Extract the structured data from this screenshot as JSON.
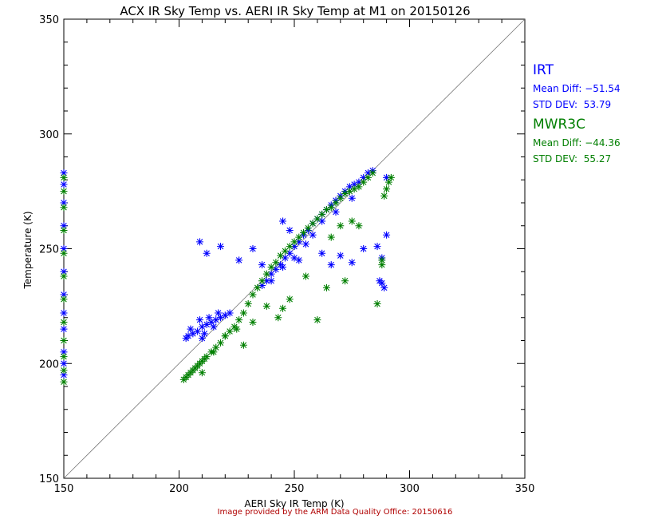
{
  "chart_data": {
    "type": "scatter",
    "title": "ACX IR Sky Temp vs. AERI IR Sky Temp at M1 on 20150126",
    "xlabel": "AERI Sky IR Temp (K)",
    "ylabel": "Temperature (K)",
    "xlim": [
      150,
      350
    ],
    "ylim": [
      150,
      350
    ],
    "xticks": [
      150,
      200,
      250,
      300,
      350
    ],
    "yticks": [
      150,
      200,
      250,
      300,
      350
    ],
    "one_to_one_line": true,
    "grid": false,
    "marker": "asterisk",
    "series": [
      {
        "name": "IRT",
        "color": "#0000ff",
        "mean_diff_label": "Mean Diff:",
        "mean_diff": "−51.54",
        "std_dev_label": "STD DEV:",
        "std_dev": "53.79",
        "x": [
          203,
          204,
          206,
          208,
          210,
          212,
          214,
          216,
          218,
          220,
          222,
          205,
          209,
          213,
          217,
          211,
          215,
          210,
          236,
          238,
          240,
          242,
          244,
          246,
          248,
          250,
          252,
          254,
          256,
          258,
          260,
          262,
          264,
          266,
          268,
          270,
          272,
          274,
          276,
          278,
          280,
          282,
          284,
          240,
          245,
          250,
          255,
          258,
          262,
          268,
          275,
          209,
          212,
          218,
          226,
          232,
          236,
          245,
          248,
          252,
          262,
          266,
          270,
          275,
          280,
          286,
          288,
          290,
          287,
          288,
          289,
          290,
          150,
          150,
          150,
          150,
          150,
          150,
          150,
          150,
          150,
          150,
          150,
          150
        ],
        "y": [
          211,
          212,
          213,
          214,
          216,
          217,
          218,
          219,
          220,
          221,
          222,
          215,
          219,
          220,
          222,
          213,
          216,
          211,
          234,
          236,
          239,
          241,
          243,
          246,
          248,
          251,
          253,
          256,
          258,
          261,
          263,
          265,
          267,
          269,
          271,
          273,
          275,
          277,
          278,
          279,
          281,
          283,
          284,
          236,
          242,
          246,
          252,
          256,
          262,
          266,
          272,
          253,
          248,
          251,
          245,
          250,
          243,
          262,
          258,
          245,
          248,
          243,
          247,
          244,
          250,
          251,
          246,
          256,
          236,
          235,
          233,
          281,
          283,
          278,
          270,
          260,
          250,
          240,
          230,
          222,
          215,
          205,
          200,
          195
        ]
      },
      {
        "name": "MWR3C",
        "color": "#007f00",
        "mean_diff_label": "Mean Diff:",
        "mean_diff": "−44.36",
        "std_dev_label": "STD DEV:",
        "std_dev": "55.27",
        "x": [
          202,
          203,
          204,
          205,
          206,
          207,
          208,
          209,
          210,
          211,
          212,
          214,
          216,
          218,
          220,
          222,
          224,
          226,
          228,
          230,
          232,
          234,
          236,
          238,
          240,
          242,
          244,
          246,
          248,
          250,
          252,
          254,
          256,
          258,
          260,
          262,
          264,
          266,
          268,
          270,
          272,
          274,
          276,
          278,
          280,
          282,
          284,
          210,
          215,
          220,
          225,
          228,
          232,
          238,
          243,
          245,
          248,
          255,
          260,
          264,
          266,
          270,
          272,
          275,
          278,
          286,
          288,
          288,
          289,
          290,
          291,
          292,
          150,
          150,
          150,
          150,
          150,
          150,
          150,
          150,
          150,
          150,
          150,
          150
        ],
        "y": [
          193,
          194,
          195,
          196,
          197,
          198,
          199,
          200,
          201,
          202,
          203,
          205,
          207,
          209,
          212,
          214,
          216,
          219,
          222,
          226,
          230,
          233,
          236,
          239,
          242,
          244,
          247,
          249,
          251,
          253,
          255,
          257,
          259,
          261,
          263,
          265,
          267,
          268,
          270,
          272,
          274,
          275,
          276,
          277,
          279,
          281,
          283,
          196,
          205,
          212,
          215,
          208,
          218,
          225,
          220,
          224,
          228,
          238,
          219,
          233,
          255,
          260,
          236,
          262,
          260,
          226,
          245,
          243,
          273,
          276,
          279,
          281,
          281,
          275,
          268,
          258,
          248,
          238,
          228,
          218,
          210,
          203,
          197,
          192
        ]
      }
    ]
  },
  "credit": "Image provided by the ARM Data Quality Office: 20150616"
}
